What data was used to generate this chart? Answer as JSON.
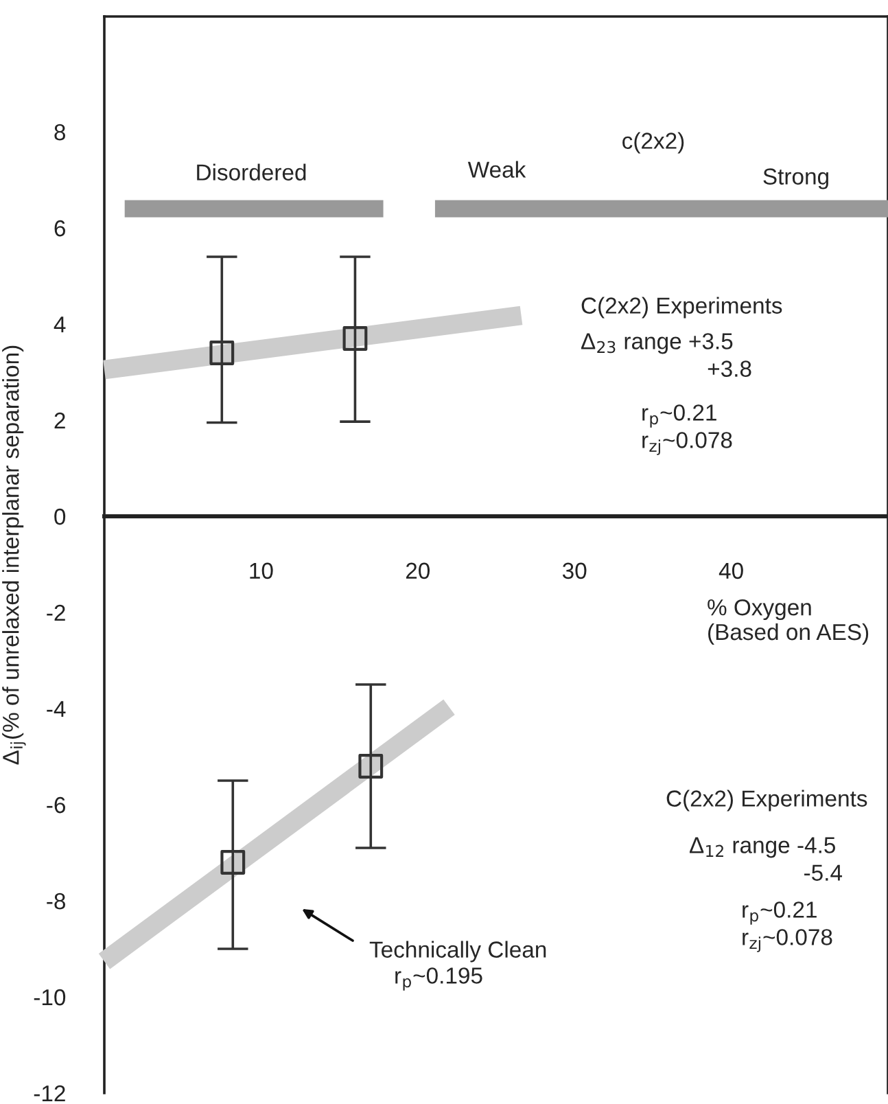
{
  "chart_data": {
    "type": "scatter",
    "ylabel": "Δ$_{ij}$(% of unrelaxed interplanar separation)",
    "xlabel": "% Oxygen\n(Based on AES)",
    "xlim": [
      0,
      50
    ],
    "xticks": [
      10,
      20,
      30,
      40
    ],
    "ylim": [
      -12,
      10.4
    ],
    "yticks": [
      -12,
      -10,
      -8,
      -6,
      -4,
      -2,
      0,
      2,
      4,
      6,
      8
    ],
    "grid": false,
    "legend": false,
    "series": [
      {
        "type": "line",
        "marker": "none",
        "color": "#999999",
        "name": "Disordered",
        "x": [
          1.3,
          17.8
        ],
        "values": [
          6.4,
          6.4
        ]
      },
      {
        "type": "line",
        "marker": "none",
        "color": "#999999",
        "name": "c(2x2)",
        "x": [
          21.1,
          50
        ],
        "values": [
          6.4,
          6.4
        ]
      },
      {
        "type": "line",
        "marker": "none",
        "color": "#cccccc",
        "x": [
          0,
          26.6
        ],
        "values": [
          3.05,
          4.18
        ]
      },
      {
        "type": "line",
        "marker": "none",
        "color": "#cccccc",
        "x": [
          0,
          22.0
        ],
        "values": [
          -9.26,
          -3.97
        ]
      },
      {
        "marker": "square",
        "color": "#333333",
        "x": [
          7.5,
          16.0
        ],
        "values": [
          3.4,
          3.7
        ],
        "errors": [
          [
            1.95,
            5.4
          ],
          [
            1.97,
            5.4
          ]
        ]
      },
      {
        "marker": "square",
        "color": "#333333",
        "x": [
          8.2,
          17.0
        ],
        "values": [
          -7.2,
          -5.2
        ],
        "errors": [
          [
            -9.0,
            -5.5
          ],
          [
            -6.9,
            -3.5
          ]
        ]
      }
    ],
    "annotations": [
      "Weak",
      "Strong",
      "C(2x2) Experiments",
      "Δ$_{23}$ range +3.5",
      "+3.8",
      "r$_{p}$~0.21",
      "r$_{zj}$~0.078",
      "C(2x2) Experiments",
      "Δ$_{12}$ range -4.5",
      "-5.4",
      "r$_{p}$~0.21",
      "r$_{zj}$~0.078",
      "Technically Clean",
      "r$_{p}$~0.195"
    ]
  }
}
